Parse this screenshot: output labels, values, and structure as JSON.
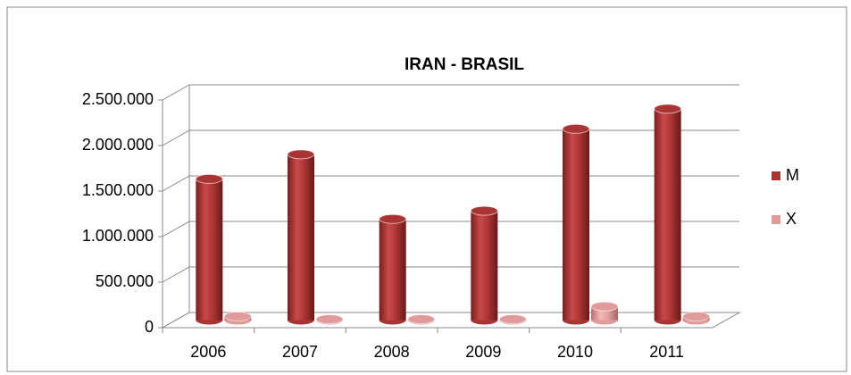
{
  "chart_data": {
    "type": "bar3d",
    "title": "IRAN - BRASIL",
    "categories": [
      "2006",
      "2007",
      "2008",
      "2009",
      "2010",
      "2011"
    ],
    "series": [
      {
        "name": "M",
        "color": "#a83434",
        "values": [
          1550000,
          1820000,
          1110000,
          1200000,
          2100000,
          2320000
        ]
      },
      {
        "name": "X",
        "color": "#e09a9a",
        "values": [
          40000,
          10000,
          10000,
          10000,
          150000,
          40000
        ]
      }
    ],
    "ylim": [
      0,
      2500000
    ],
    "yticks": [
      0,
      {
        "value": 500000,
        "label": "500.000"
      },
      {
        "value": 1000000,
        "label": "1.000.000"
      },
      {
        "value": 1500000,
        "label": "1.500.000"
      },
      {
        "value": 2000000,
        "label": "2.000.000"
      },
      {
        "value": 2500000,
        "label": "2.500.000"
      }
    ],
    "grid": true,
    "legend": "right"
  }
}
